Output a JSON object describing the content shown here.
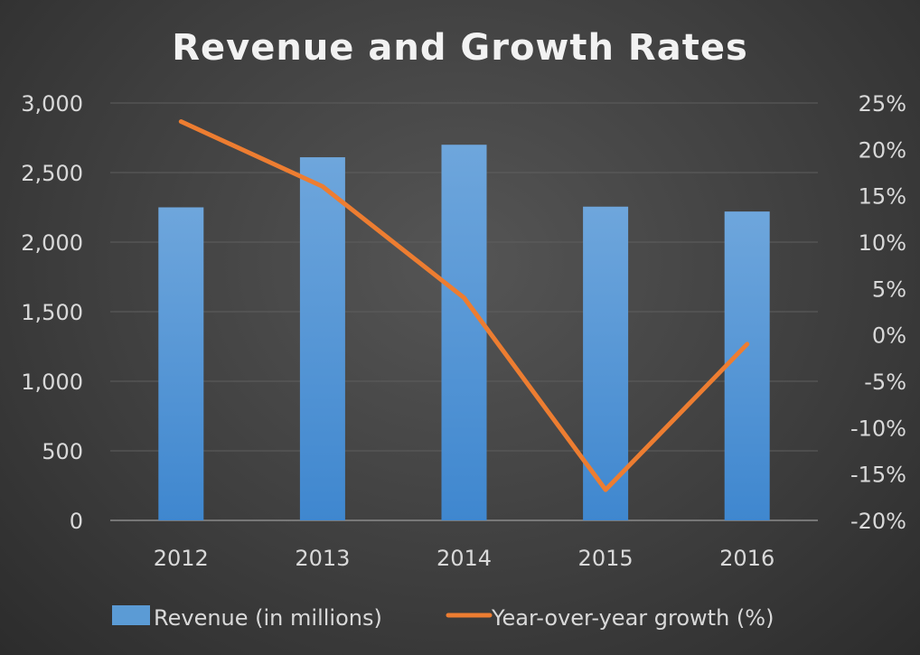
{
  "chart_data": {
    "type": "bar+line",
    "title": "Revenue and Growth Rates",
    "categories": [
      "2012",
      "2013",
      "2014",
      "2015",
      "2016"
    ],
    "series": [
      {
        "name": "Revenue (in millions)",
        "type": "bar",
        "axis": "left",
        "color": "#5b9bd5",
        "values": [
          2250,
          2610,
          2700,
          2255,
          2220
        ]
      },
      {
        "name": "Year-over-year growth (%)",
        "type": "line",
        "axis": "right",
        "color": "#ed7d31",
        "values": [
          23,
          16,
          4,
          -16.7,
          -1
        ]
      }
    ],
    "left_axis": {
      "ylim": [
        0,
        3000
      ],
      "ticks": [
        "0",
        "500",
        "1,000",
        "1,500",
        "2,000",
        "2,500",
        "3,000"
      ],
      "tick_values": [
        0,
        500,
        1000,
        1500,
        2000,
        2500,
        3000
      ]
    },
    "right_axis": {
      "ylim": [
        -20,
        25
      ],
      "ticks": [
        "-20%",
        "-15%",
        "-10%",
        "-5%",
        "0%",
        "5%",
        "10%",
        "15%",
        "20%",
        "25%"
      ],
      "tick_values": [
        -20,
        -15,
        -10,
        -5,
        0,
        5,
        10,
        15,
        20,
        25
      ]
    },
    "grid": true,
    "legend": "bottom"
  }
}
